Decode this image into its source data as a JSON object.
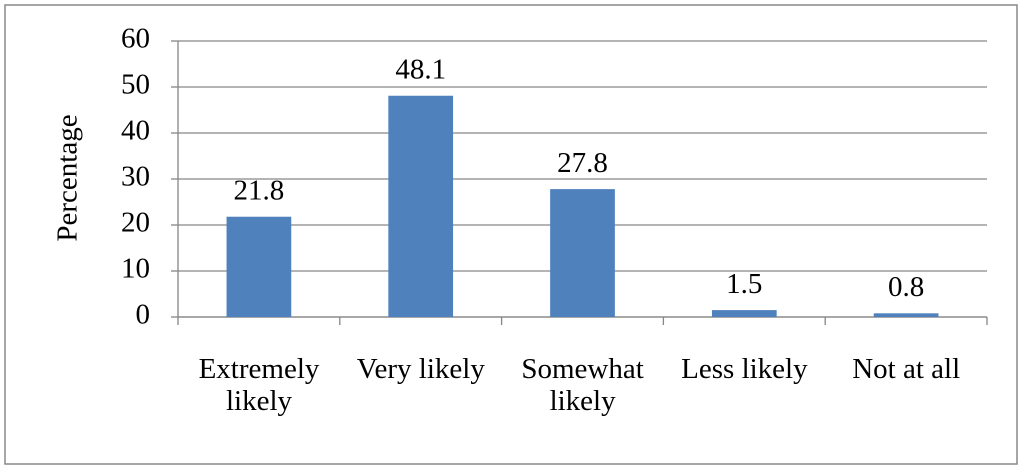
{
  "chart_data": {
    "type": "bar",
    "y_label": "Percentage",
    "categories": [
      "Extremely likely",
      "Very likely",
      "Somewhat likely",
      "Less likely",
      "Not at all"
    ],
    "values": [
      21.8,
      48.1,
      27.8,
      1.5,
      0.8
    ],
    "color": "#4f81bd",
    "ylim": [
      0,
      60
    ],
    "yticks": [
      0,
      10,
      20,
      30,
      40,
      50,
      60
    ],
    "grid": true
  }
}
